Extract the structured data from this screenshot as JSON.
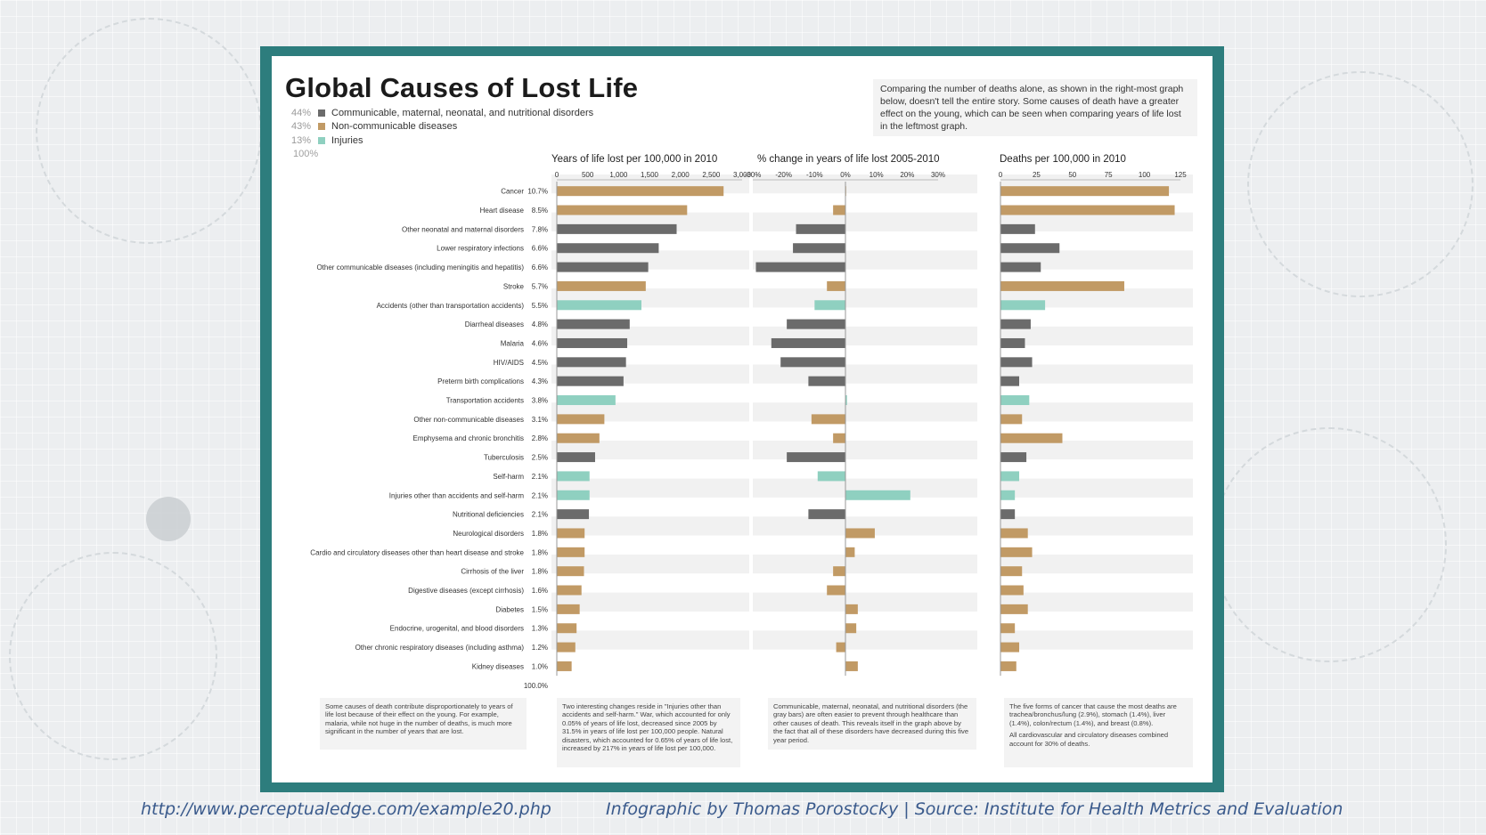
{
  "colors": {
    "communicable": "#6b6b6b",
    "noncommunicable": "#c19a65",
    "injuries": "#8fd0c0",
    "frame": "#2d7d7d",
    "footer_text": "#3a5a8c"
  },
  "infographic": {
    "title": "Global Causes of Lost Life",
    "legend": [
      {
        "pct": "44%",
        "label": "Communicable, maternal, neonatal, and nutritional disorders",
        "color": "#6b6b6b"
      },
      {
        "pct": "43%",
        "label": "Non-communicable diseases",
        "color": "#c19a65"
      },
      {
        "pct": "13%",
        "label": "Injuries",
        "color": "#8fd0c0"
      }
    ],
    "legend_total": "100%",
    "intro_text": "Comparing the number of deaths alone, as shown in the right-most graph below, doesn't tell the entire story. Some causes of death have a greater effect on the young, which can be seen when comparing years of life lost in the leftmost graph.",
    "total_label": "100.0%",
    "notes": [
      [
        "Some causes of death contribute disproportionately to years of life lost because of their effect on the young. For example, malaria, while not huge in the number of deaths, is much more significant in the number of years that are lost."
      ],
      [
        "Two interesting changes reside in \"Injuries other than accidents and self-harm.\" War, which accounted for only 0.05% of years of life lost, decreased since 2005 by 31.5% in years of life lost per 100,000 people. Natural disasters, which accounted for 0.65% of years of life lost, increased by 217% in years of life lost per 100,000."
      ],
      [
        "Communicable, maternal, neonatal, and nutritional disorders (the gray bars) are often easier to prevent through healthcare than other causes of death. This reveals itself in the graph above by the fact that all of these disorders have decreased during this five year period."
      ],
      [
        "The five forms of cancer that cause the most deaths are trachea/bronchus/lung (2.9%), stomach (1.4%), liver (1.4%), colon/rectum (1.4%), and breast (0.8%).",
        "All cardiovascular and circulatory diseases combined account for 30% of deaths."
      ]
    ]
  },
  "footer": {
    "url": "http://www.perceptualedge.com/example20.php",
    "credit": "Infographic by Thomas Porostocky  |  Source: Institute for Health Metrics and Evaluation"
  },
  "chart_data": {
    "type": "bar",
    "panels": [
      {
        "key": "yll",
        "title": "Years of life lost per 100,000 in 2010",
        "xlim": [
          0,
          3000
        ],
        "ticks": [
          0,
          500,
          1000,
          1500,
          2000,
          2500,
          3000
        ],
        "tick_labels": [
          "0",
          "500",
          "1,000",
          "1,500",
          "2,000",
          "2,500",
          "3,000"
        ]
      },
      {
        "key": "change",
        "title": "% change  in years of life lost 2005-2010",
        "xlim": [
          -30,
          30
        ],
        "ticks": [
          -30,
          -20,
          -10,
          0,
          10,
          20,
          30
        ],
        "tick_labels": [
          "-30%",
          "-20%",
          "-10%",
          "0%",
          "10%",
          "20%",
          "30%"
        ]
      },
      {
        "key": "deaths",
        "title": "Deaths per 100,000 in 2010",
        "xlim": [
          0,
          125
        ],
        "ticks": [
          0,
          25,
          50,
          75,
          100,
          125
        ],
        "tick_labels": [
          "0",
          "25",
          "50",
          "75",
          "100",
          "125"
        ]
      }
    ],
    "categories": [
      {
        "name": "Cancer",
        "share": "10.7%",
        "group": "noncommunicable",
        "yll": 2700,
        "change": 0,
        "deaths": 117
      },
      {
        "name": "Heart disease",
        "share": "8.5%",
        "group": "noncommunicable",
        "yll": 2110,
        "change": -4,
        "deaths": 121
      },
      {
        "name": "Other neonatal and maternal disorders",
        "share": "7.8%",
        "group": "communicable",
        "yll": 1940,
        "change": -16,
        "deaths": 24
      },
      {
        "name": "Lower respiratory infections",
        "share": "6.6%",
        "group": "communicable",
        "yll": 1650,
        "change": -17,
        "deaths": 41
      },
      {
        "name": "Other communicable diseases (including meningitis and hepatitis)",
        "share": "6.6%",
        "group": "communicable",
        "yll": 1480,
        "change": -29,
        "deaths": 28
      },
      {
        "name": "Stroke",
        "share": "5.7%",
        "group": "noncommunicable",
        "yll": 1440,
        "change": -6,
        "deaths": 86
      },
      {
        "name": "Accidents (other than transportation accidents)",
        "share": "5.5%",
        "group": "injuries",
        "yll": 1370,
        "change": -10,
        "deaths": 31
      },
      {
        "name": "Diarrheal diseases",
        "share": "4.8%",
        "group": "communicable",
        "yll": 1180,
        "change": -19,
        "deaths": 21
      },
      {
        "name": "Malaria",
        "share": "4.6%",
        "group": "communicable",
        "yll": 1140,
        "change": -24,
        "deaths": 17
      },
      {
        "name": "HIV/AIDS",
        "share": "4.5%",
        "group": "communicable",
        "yll": 1120,
        "change": -21,
        "deaths": 22
      },
      {
        "name": "Preterm birth complications",
        "share": "4.3%",
        "group": "communicable",
        "yll": 1080,
        "change": -12,
        "deaths": 13
      },
      {
        "name": "Transportation accidents",
        "share": "3.8%",
        "group": "injuries",
        "yll": 950,
        "change": 0.5,
        "deaths": 20
      },
      {
        "name": "Other non-communicable diseases",
        "share": "3.1%",
        "group": "noncommunicable",
        "yll": 770,
        "change": -11,
        "deaths": 15
      },
      {
        "name": "Emphysema and chronic bronchitis",
        "share": "2.8%",
        "group": "noncommunicable",
        "yll": 690,
        "change": -4,
        "deaths": 43
      },
      {
        "name": "Tuberculosis",
        "share": "2.5%",
        "group": "communicable",
        "yll": 620,
        "change": -19,
        "deaths": 18
      },
      {
        "name": "Self-harm",
        "share": "2.1%",
        "group": "injuries",
        "yll": 530,
        "change": -9,
        "deaths": 13
      },
      {
        "name": "Injuries other than accidents and self-harm",
        "share": "2.1%",
        "group": "injuries",
        "yll": 530,
        "change": 21,
        "deaths": 10
      },
      {
        "name": "Nutritional deficiencies",
        "share": "2.1%",
        "group": "communicable",
        "yll": 520,
        "change": -12,
        "deaths": 10
      },
      {
        "name": "Neurological disorders",
        "share": "1.8%",
        "group": "noncommunicable",
        "yll": 450,
        "change": 9.5,
        "deaths": 19
      },
      {
        "name": "Cardio and circulatory diseases other than heart disease and stroke",
        "share": "1.8%",
        "group": "noncommunicable",
        "yll": 450,
        "change": 3,
        "deaths": 22
      },
      {
        "name": "Cirrhosis of the liver",
        "share": "1.8%",
        "group": "noncommunicable",
        "yll": 440,
        "change": -4,
        "deaths": 15
      },
      {
        "name": "Digestive diseases (except cirrhosis)",
        "share": "1.6%",
        "group": "noncommunicable",
        "yll": 400,
        "change": -6,
        "deaths": 16
      },
      {
        "name": "Diabetes",
        "share": "1.5%",
        "group": "noncommunicable",
        "yll": 370,
        "change": 4,
        "deaths": 19
      },
      {
        "name": "Endocrine, urogenital, and blood disorders",
        "share": "1.3%",
        "group": "noncommunicable",
        "yll": 320,
        "change": 3.5,
        "deaths": 10
      },
      {
        "name": "Other chronic respiratory diseases (including asthma)",
        "share": "1.2%",
        "group": "noncommunicable",
        "yll": 300,
        "change": -3,
        "deaths": 13
      },
      {
        "name": "Kidney diseases",
        "share": "1.0%",
        "group": "noncommunicable",
        "yll": 240,
        "change": 4,
        "deaths": 11
      }
    ]
  }
}
